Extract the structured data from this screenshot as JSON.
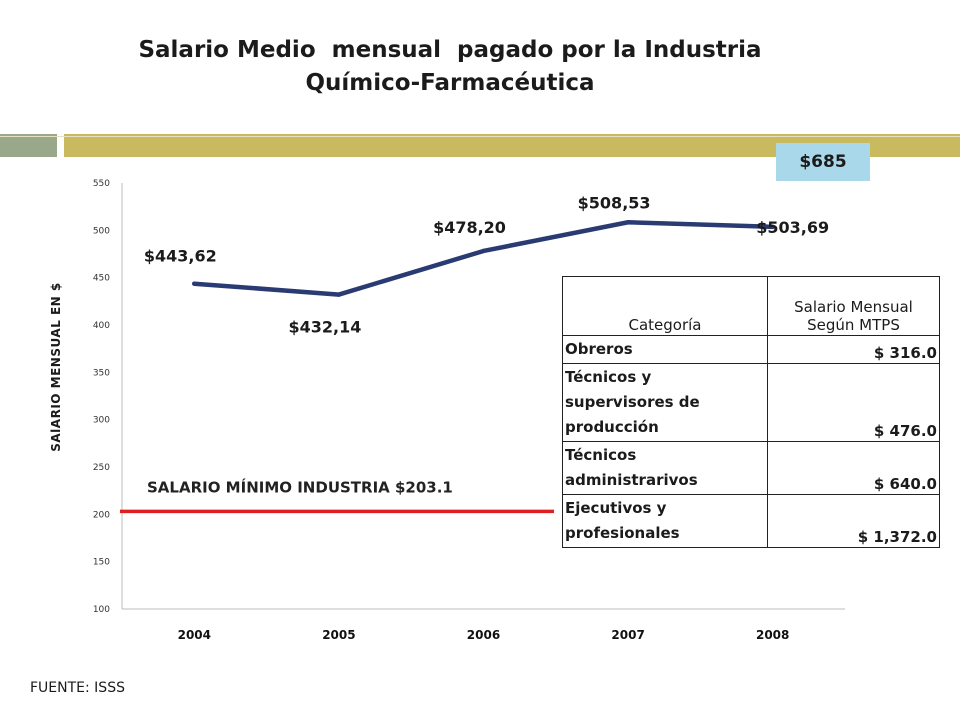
{
  "title": {
    "line1": "Salario Medio  mensual  pagado por la Industria",
    "line2": "Químico-Farmacéutica"
  },
  "highlight": "$685",
  "source": "FUENTE: ISSS",
  "minimum_label": "SALARIO MÍNIMO  INDUSTRIA $203.1",
  "colors": {
    "series_line": "#2a3b73",
    "minimum_line": "#e02020",
    "highlight_box": "#a9d8ea",
    "bar_green": "#9aa88a",
    "bar_gold": "#c9b95f"
  },
  "table": {
    "headers": [
      "Categoría",
      "Salario Mensual Según MTPS"
    ],
    "rows": [
      {
        "category": "Obreros",
        "salary": "$ 316.0"
      },
      {
        "category": "Técnicos y supervisores de producción",
        "salary": "$ 476.0"
      },
      {
        "category": "Técnicos administrarivos",
        "salary": "$ 640.0"
      },
      {
        "category": "Ejecutivos y profesionales",
        "salary": "$ 1,372.0"
      }
    ]
  },
  "chart_data": {
    "type": "line",
    "title": "Salario Medio  mensual  pagado por la Industria Químico-Farmacéutica",
    "xlabel": "",
    "ylabel": "SAlARIO MENSUAL EN $",
    "categories": [
      "2004",
      "2005",
      "2006",
      "2007",
      "2008"
    ],
    "series": [
      {
        "values": [
          443.62,
          432.14,
          478.2,
          508.53,
          503.69
        ]
      }
    ],
    "data_labels": [
      "$443,62",
      "$432,14",
      "$478,20",
      "$508,53",
      "$503,69"
    ],
    "reference_line": {
      "value": 203.1,
      "label": "SALARIO MÍNIMO  INDUSTRIA $203.1"
    },
    "ylim": [
      100,
      550
    ],
    "yticks": [
      "100",
      "150",
      "200",
      "250",
      "300",
      "350",
      "400",
      "450",
      "500",
      "550"
    ],
    "grid": false,
    "legend": "none"
  }
}
